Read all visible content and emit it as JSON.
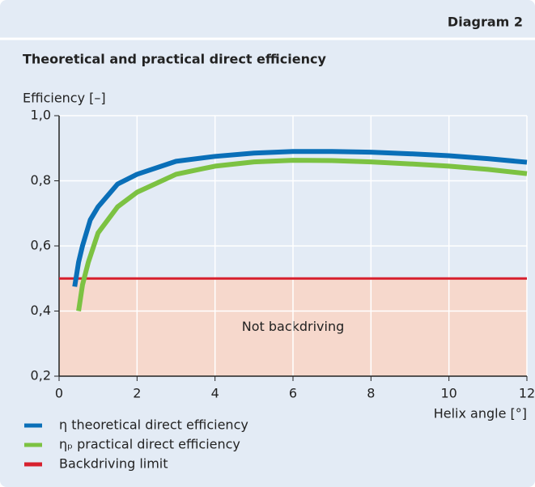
{
  "header": "Diagram 2",
  "chart_data": {
    "type": "line",
    "title": "Theoretical and practical direct efficiency",
    "y_label": "Efficiency [–]",
    "x_label": "Helix angle [°]",
    "annotation": "Not backdriving",
    "xlim": [
      0,
      12
    ],
    "xticks": [
      0,
      2,
      4,
      6,
      8,
      10,
      12
    ],
    "ylim": [
      0.2,
      1.0
    ],
    "yticks": [
      {
        "value": 0.2,
        "label": "0,2"
      },
      {
        "value": 0.4,
        "label": "0,4"
      },
      {
        "value": 0.6,
        "label": "0,6"
      },
      {
        "value": 0.8,
        "label": "0,8"
      },
      {
        "value": 1.0,
        "label": "1,0"
      }
    ],
    "grid": true,
    "series": [
      {
        "name": "η theoretical direct efficiency",
        "color": "#0a6fb8",
        "x": [
          0.4,
          0.5,
          0.6,
          0.8,
          1,
          1.5,
          2,
          3,
          4,
          5,
          6,
          7,
          8,
          9,
          10,
          11,
          12
        ],
        "values": [
          0.475,
          0.55,
          0.6,
          0.68,
          0.72,
          0.79,
          0.82,
          0.86,
          0.875,
          0.885,
          0.89,
          0.89,
          0.888,
          0.883,
          0.877,
          0.868,
          0.857
        ]
      },
      {
        "name": "ηₚ practical direct efficiency",
        "color": "#7cc242",
        "x": [
          0.5,
          0.6,
          0.75,
          1,
          1.5,
          2,
          3,
          4,
          5,
          6,
          7,
          8,
          9,
          10,
          11,
          12
        ],
        "values": [
          0.4,
          0.48,
          0.55,
          0.64,
          0.72,
          0.765,
          0.82,
          0.845,
          0.858,
          0.863,
          0.862,
          0.858,
          0.852,
          0.845,
          0.835,
          0.822
        ]
      },
      {
        "name": "Backdriving limit",
        "color": "#d7202e",
        "x": [
          0,
          12
        ],
        "values": [
          0.5,
          0.5
        ]
      }
    ]
  }
}
